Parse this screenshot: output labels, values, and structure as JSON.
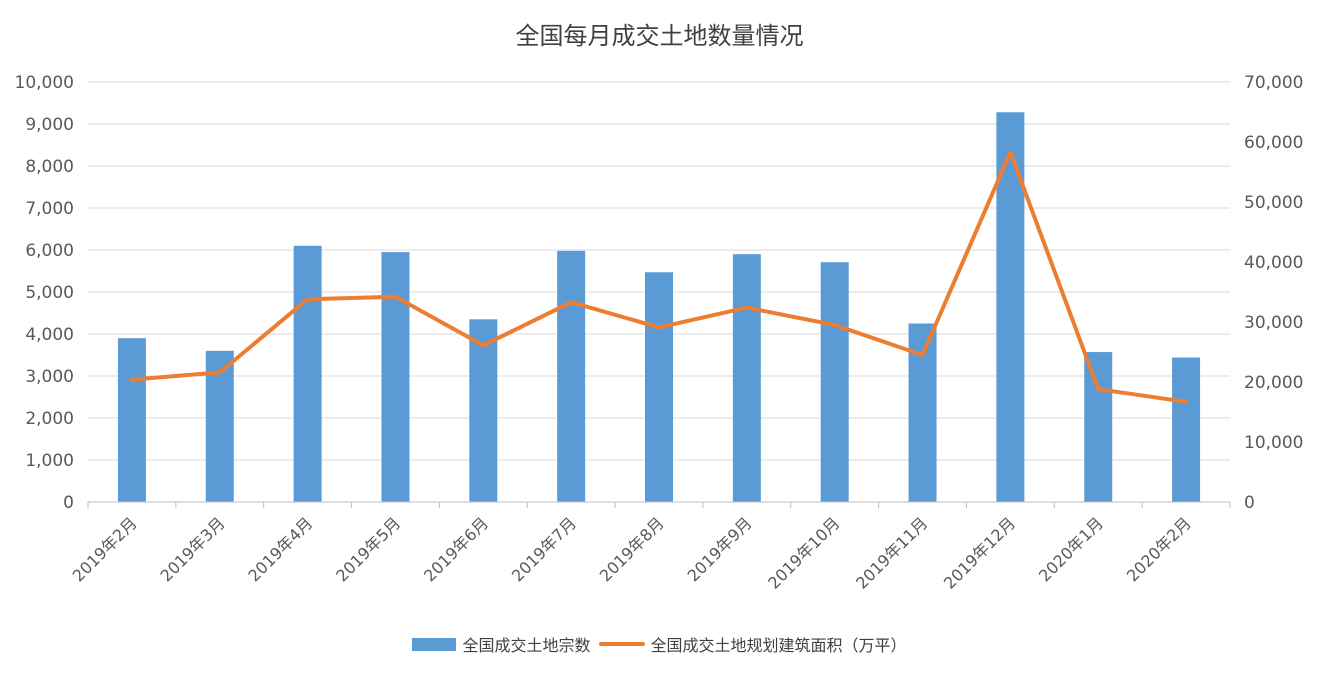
{
  "chart_data": {
    "type": "bar",
    "title": "全国每月成交土地数量情况",
    "categories": [
      "2019年2月",
      "2019年3月",
      "2019年4月",
      "2019年5月",
      "2019年6月",
      "2019年7月",
      "2019年8月",
      "2019年9月",
      "2019年10月",
      "2019年11月",
      "2019年12月",
      "2020年1月",
      "2020年2月"
    ],
    "series": [
      {
        "name": "全国成交土地宗数",
        "type": "bar",
        "axis": "left",
        "color": "#5B9BD5",
        "values": [
          3900,
          3600,
          6100,
          5950,
          4350,
          5980,
          5470,
          5900,
          5710,
          4250,
          9280,
          3570,
          3440
        ]
      },
      {
        "name": "全国成交土地规划建筑面积（万平）",
        "type": "line",
        "axis": "right",
        "color": "#ED7D31",
        "values": [
          20400,
          21600,
          33800,
          34200,
          26100,
          33300,
          29100,
          32400,
          29500,
          24500,
          58300,
          18800,
          16700
        ]
      }
    ],
    "left_axis": {
      "ylim": [
        0,
        10000
      ],
      "ticks": [
        "0",
        "1,000",
        "2,000",
        "3,000",
        "4,000",
        "5,000",
        "6,000",
        "7,000",
        "8,000",
        "9,000",
        "10,000"
      ]
    },
    "right_axis": {
      "ylim": [
        0,
        70000
      ],
      "ticks": [
        "0",
        "10,000",
        "20,000",
        "30,000",
        "40,000",
        "50,000",
        "60,000",
        "70,000"
      ]
    },
    "grid": true,
    "legend_position": "bottom"
  }
}
